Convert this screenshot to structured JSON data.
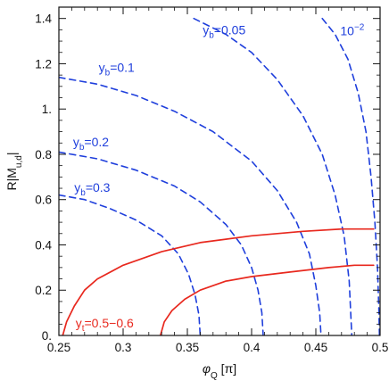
{
  "chart_data": {
    "type": "line",
    "xlabel": "φQ [π]",
    "ylabel": "R|Mu,d|",
    "xlim": [
      0.25,
      0.5
    ],
    "ylim": [
      0,
      1.45
    ],
    "x_ticks": [
      0.25,
      0.3,
      0.35,
      0.4,
      0.45,
      0.5
    ],
    "x_tick_labels": [
      "0.25",
      "0.3",
      "0.35",
      "0.4",
      "0.45",
      "0.5"
    ],
    "y_ticks": [
      0,
      0.2,
      0.4,
      0.6,
      0.8,
      1.0,
      1.2,
      1.4
    ],
    "y_tick_labels": [
      "0.",
      "0.2",
      "0.4",
      "0.6",
      "0.8",
      "1.",
      "1.2",
      "1.4"
    ],
    "grid": false,
    "legend": "none",
    "colors": {
      "blue": "#1f3fdc",
      "red": "#e8281e"
    },
    "series": [
      {
        "label_key": "yb_005",
        "style": "dashed",
        "color": "#1f3fdc",
        "points": [
          [
            0.355,
            1.4
          ],
          [
            0.38,
            1.33
          ],
          [
            0.4,
            1.25
          ],
          [
            0.42,
            1.13
          ],
          [
            0.44,
            0.97
          ],
          [
            0.455,
            0.8
          ],
          [
            0.465,
            0.62
          ],
          [
            0.472,
            0.44
          ],
          [
            0.476,
            0.24
          ],
          [
            0.478,
            0.0
          ]
        ]
      },
      {
        "label_key": "yb_01",
        "style": "dashed",
        "color": "#1f3fdc",
        "points": [
          [
            0.25,
            1.14
          ],
          [
            0.28,
            1.11
          ],
          [
            0.31,
            1.06
          ],
          [
            0.34,
            0.99
          ],
          [
            0.37,
            0.9
          ],
          [
            0.4,
            0.77
          ],
          [
            0.42,
            0.64
          ],
          [
            0.435,
            0.5
          ],
          [
            0.445,
            0.36
          ],
          [
            0.45,
            0.22
          ],
          [
            0.453,
            0.1
          ],
          [
            0.454,
            0.0
          ]
        ]
      },
      {
        "label_key": "yb_02",
        "style": "dashed",
        "color": "#1f3fdc",
        "points": [
          [
            0.25,
            0.81
          ],
          [
            0.28,
            0.78
          ],
          [
            0.31,
            0.73
          ],
          [
            0.34,
            0.66
          ],
          [
            0.36,
            0.59
          ],
          [
            0.38,
            0.49
          ],
          [
            0.392,
            0.4
          ],
          [
            0.4,
            0.3
          ],
          [
            0.405,
            0.2
          ],
          [
            0.408,
            0.1
          ],
          [
            0.409,
            0.0
          ]
        ]
      },
      {
        "label_key": "yb_03",
        "style": "dashed",
        "color": "#1f3fdc",
        "points": [
          [
            0.25,
            0.62
          ],
          [
            0.27,
            0.6
          ],
          [
            0.29,
            0.56
          ],
          [
            0.31,
            0.51
          ],
          [
            0.33,
            0.44
          ],
          [
            0.343,
            0.36
          ],
          [
            0.351,
            0.27
          ],
          [
            0.356,
            0.18
          ],
          [
            0.359,
            0.09
          ],
          [
            0.36,
            0.0
          ]
        ]
      },
      {
        "label_key": "e2",
        "style": "dashed",
        "color": "#1f3fdc",
        "points": [
          [
            0.455,
            1.4
          ],
          [
            0.465,
            1.33
          ],
          [
            0.475,
            1.22
          ],
          [
            0.483,
            1.07
          ],
          [
            0.489,
            0.9
          ],
          [
            0.493,
            0.7
          ],
          [
            0.496,
            0.5
          ],
          [
            0.498,
            0.3
          ],
          [
            0.499,
            0.12
          ],
          [
            0.4995,
            0.0
          ]
        ]
      },
      {
        "label_key": "yt",
        "style": "solid",
        "color": "#e8281e",
        "points": [
          [
            0.253,
            0.0
          ],
          [
            0.256,
            0.06
          ],
          [
            0.262,
            0.13
          ],
          [
            0.27,
            0.2
          ],
          [
            0.28,
            0.25
          ],
          [
            0.3,
            0.31
          ],
          [
            0.33,
            0.37
          ],
          [
            0.36,
            0.41
          ],
          [
            0.4,
            0.44
          ],
          [
            0.44,
            0.46
          ],
          [
            0.47,
            0.47
          ],
          [
            0.495,
            0.47
          ]
        ]
      },
      {
        "label_key": "yt",
        "style": "solid",
        "color": "#e8281e",
        "points": [
          [
            0.329,
            0.0
          ],
          [
            0.332,
            0.06
          ],
          [
            0.338,
            0.11
          ],
          [
            0.348,
            0.16
          ],
          [
            0.36,
            0.2
          ],
          [
            0.38,
            0.24
          ],
          [
            0.4,
            0.26
          ],
          [
            0.43,
            0.28
          ],
          [
            0.46,
            0.3
          ],
          [
            0.48,
            0.31
          ],
          [
            0.495,
            0.31
          ]
        ]
      }
    ],
    "annotations": [
      {
        "key": "yb_005",
        "sym": "y",
        "sub": "b",
        "rest": "=0.05",
        "x": 0.362,
        "y": 1.33,
        "color": "#1f3fdc"
      },
      {
        "key": "yb_01",
        "sym": "y",
        "sub": "b",
        "rest": "=0.1",
        "x": 0.281,
        "y": 1.165,
        "color": "#1f3fdc"
      },
      {
        "key": "yb_02",
        "sym": "y",
        "sub": "b",
        "rest": "=0.2",
        "x": 0.261,
        "y": 0.835,
        "color": "#1f3fdc"
      },
      {
        "key": "yb_03",
        "sym": "y",
        "sub": "b",
        "rest": "=0.3",
        "x": 0.262,
        "y": 0.635,
        "color": "#1f3fdc"
      },
      {
        "key": "e2",
        "sym": "10",
        "sup": "−2",
        "rest": "",
        "x": 0.469,
        "y": 1.325,
        "color": "#1f3fdc"
      },
      {
        "key": "yt",
        "sym": "y",
        "sub": "t",
        "rest": "=0.5−0.6",
        "x": 0.263,
        "y": 0.035,
        "color": "#e8281e"
      }
    ]
  }
}
